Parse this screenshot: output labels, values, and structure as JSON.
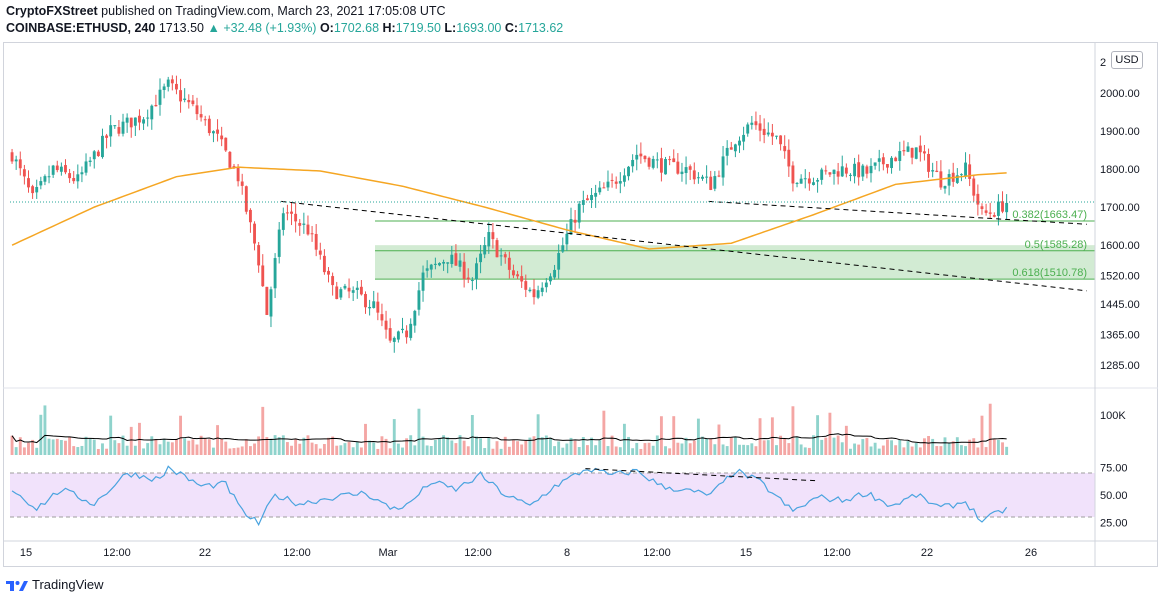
{
  "header": {
    "publisher": "CryptoFXStreet",
    "published_text": " published on TradingView.com, March 23, 2021 17:05:08 UTC",
    "symbol": "COINBASE:ETHUSD, 240",
    "last": "1713.50",
    "change": "▲ +32.48 (+1.93%)",
    "o_label": "O:",
    "o_value": "1702.68",
    "h_label": "H:",
    "h_value": "1719.50",
    "l_label": "L:",
    "l_value": "1693.00",
    "c_label": "C:",
    "c_value": "1713.62"
  },
  "currency_button": "USD",
  "footer": {
    "brand": "TradingView"
  },
  "colors": {
    "up": "#26a69a",
    "down": "#ef5350",
    "ma": "#f5a623",
    "fib": "#4caf50",
    "fib_zone": "rgba(76,175,80,0.25)",
    "rsi": "#4aa3df",
    "rsi_band": "rgba(225,190,247,0.45)",
    "vol_up": "#8fd3cc",
    "vol_down": "#f4a6a4",
    "vol_ma": "#000000"
  },
  "chart_data": [
    {
      "type": "candlestick",
      "title": "",
      "price_axis_ticks": [
        {
          "value": 2000,
          "label": "2000.00"
        },
        {
          "value": 1900,
          "label": "1900.00"
        },
        {
          "value": 1800,
          "label": "1800.00"
        },
        {
          "value": 1700,
          "label": "1700.00"
        },
        {
          "value": 1600,
          "label": "1600.00"
        },
        {
          "value": 1520,
          "label": "1520.00"
        },
        {
          "value": 1445,
          "label": "1445.00"
        },
        {
          "value": 1365,
          "label": "1365.00"
        },
        {
          "value": 1285,
          "label": "1285.00"
        }
      ],
      "partial_top_tick": "2",
      "x_axis_ticks": [
        "15",
        "12:00",
        "22",
        "12:00",
        "Mar",
        "12:00",
        "8",
        "12:00",
        "15",
        "12:00",
        "22",
        "26"
      ],
      "moving_average_pivots": [
        {
          "bar": 0,
          "value": 1600
        },
        {
          "bar": 20,
          "value": 1700
        },
        {
          "bar": 40,
          "value": 1780
        },
        {
          "bar": 55,
          "value": 1805
        },
        {
          "bar": 75,
          "value": 1795
        },
        {
          "bar": 95,
          "value": 1755
        },
        {
          "bar": 115,
          "value": 1700
        },
        {
          "bar": 135,
          "value": 1640
        },
        {
          "bar": 155,
          "value": 1590
        },
        {
          "bar": 175,
          "value": 1605
        },
        {
          "bar": 195,
          "value": 1680
        },
        {
          "bar": 215,
          "value": 1760
        },
        {
          "bar": 235,
          "value": 1785
        },
        {
          "bar": 242,
          "value": 1790
        }
      ],
      "price_pivots": [
        {
          "bar": 0,
          "value": 1840
        },
        {
          "bar": 5,
          "value": 1720
        },
        {
          "bar": 10,
          "value": 1800
        },
        {
          "bar": 16,
          "value": 1770
        },
        {
          "bar": 24,
          "value": 1900
        },
        {
          "bar": 32,
          "value": 1940
        },
        {
          "bar": 38,
          "value": 2020
        },
        {
          "bar": 44,
          "value": 1960
        },
        {
          "bar": 50,
          "value": 1880
        },
        {
          "bar": 55,
          "value": 1780
        },
        {
          "bar": 60,
          "value": 1560
        },
        {
          "bar": 62,
          "value": 1420
        },
        {
          "bar": 66,
          "value": 1690
        },
        {
          "bar": 72,
          "value": 1640
        },
        {
          "bar": 78,
          "value": 1480
        },
        {
          "bar": 84,
          "value": 1470
        },
        {
          "bar": 88,
          "value": 1440
        },
        {
          "bar": 92,
          "value": 1340
        },
        {
          "bar": 96,
          "value": 1370
        },
        {
          "bar": 100,
          "value": 1520
        },
        {
          "bar": 106,
          "value": 1570
        },
        {
          "bar": 112,
          "value": 1510
        },
        {
          "bar": 116,
          "value": 1620
        },
        {
          "bar": 122,
          "value": 1520
        },
        {
          "bar": 127,
          "value": 1470
        },
        {
          "bar": 132,
          "value": 1550
        },
        {
          "bar": 138,
          "value": 1700
        },
        {
          "bar": 146,
          "value": 1760
        },
        {
          "bar": 152,
          "value": 1840
        },
        {
          "bar": 158,
          "value": 1810
        },
        {
          "bar": 164,
          "value": 1800
        },
        {
          "bar": 170,
          "value": 1760
        },
        {
          "bar": 176,
          "value": 1880
        },
        {
          "bar": 180,
          "value": 1920
        },
        {
          "bar": 186,
          "value": 1880
        },
        {
          "bar": 190,
          "value": 1780
        },
        {
          "bar": 196,
          "value": 1780
        },
        {
          "bar": 202,
          "value": 1800
        },
        {
          "bar": 208,
          "value": 1790
        },
        {
          "bar": 214,
          "value": 1830
        },
        {
          "bar": 220,
          "value": 1850
        },
        {
          "bar": 226,
          "value": 1770
        },
        {
          "bar": 232,
          "value": 1800
        },
        {
          "bar": 236,
          "value": 1680
        },
        {
          "bar": 239,
          "value": 1690
        },
        {
          "bar": 242,
          "value": 1713
        }
      ],
      "trend_lines": [
        {
          "from": {
            "bar": 66,
            "value": 1715
          },
          "to": {
            "bar": 262,
            "value": 1480
          }
        },
        {
          "from": {
            "bar": 170,
            "value": 1715
          },
          "to": {
            "bar": 262,
            "value": 1655
          }
        }
      ],
      "fibonacci": [
        {
          "ratio": "0.382",
          "value": 1663.47,
          "label": "0.382(1663.47)"
        },
        {
          "ratio": "0.5",
          "value": 1585.28,
          "label": "0.5(1585.28)"
        },
        {
          "ratio": "0.618",
          "value": 1510.78,
          "label": "0.618(1510.78)"
        }
      ],
      "fib_zone": [
        1510.78,
        1600
      ]
    },
    {
      "type": "bar",
      "series_label": "Volume",
      "axis_tick": "100K"
    },
    {
      "type": "line",
      "series_label": "RSI",
      "axis_ticks": [
        {
          "value": 75,
          "label": "75.00"
        },
        {
          "value": 50,
          "label": "50.00"
        },
        {
          "value": 25,
          "label": "25.00"
        }
      ],
      "band": [
        30,
        70
      ],
      "pivots": [
        {
          "bar": 0,
          "value": 55
        },
        {
          "bar": 6,
          "value": 38
        },
        {
          "bar": 12,
          "value": 55
        },
        {
          "bar": 20,
          "value": 42
        },
        {
          "bar": 28,
          "value": 70
        },
        {
          "bar": 36,
          "value": 64
        },
        {
          "bar": 38,
          "value": 75
        },
        {
          "bar": 46,
          "value": 58
        },
        {
          "bar": 52,
          "value": 60
        },
        {
          "bar": 56,
          "value": 35
        },
        {
          "bar": 60,
          "value": 24
        },
        {
          "bar": 64,
          "value": 50
        },
        {
          "bar": 70,
          "value": 42
        },
        {
          "bar": 78,
          "value": 48
        },
        {
          "bar": 86,
          "value": 52
        },
        {
          "bar": 92,
          "value": 38
        },
        {
          "bar": 96,
          "value": 40
        },
        {
          "bar": 102,
          "value": 62
        },
        {
          "bar": 108,
          "value": 55
        },
        {
          "bar": 114,
          "value": 68
        },
        {
          "bar": 120,
          "value": 50
        },
        {
          "bar": 126,
          "value": 40
        },
        {
          "bar": 132,
          "value": 58
        },
        {
          "bar": 140,
          "value": 74
        },
        {
          "bar": 146,
          "value": 68
        },
        {
          "bar": 152,
          "value": 72
        },
        {
          "bar": 158,
          "value": 58
        },
        {
          "bar": 164,
          "value": 54
        },
        {
          "bar": 170,
          "value": 50
        },
        {
          "bar": 176,
          "value": 72
        },
        {
          "bar": 182,
          "value": 62
        },
        {
          "bar": 190,
          "value": 35
        },
        {
          "bar": 196,
          "value": 48
        },
        {
          "bar": 202,
          "value": 45
        },
        {
          "bar": 208,
          "value": 52
        },
        {
          "bar": 214,
          "value": 40
        },
        {
          "bar": 220,
          "value": 50
        },
        {
          "bar": 226,
          "value": 38
        },
        {
          "bar": 232,
          "value": 44
        },
        {
          "bar": 236,
          "value": 26
        },
        {
          "bar": 239,
          "value": 32
        },
        {
          "bar": 242,
          "value": 38
        }
      ],
      "trend_line": {
        "from": {
          "bar": 140,
          "value": 74
        },
        "to": {
          "bar": 196,
          "value": 63
        }
      }
    }
  ]
}
